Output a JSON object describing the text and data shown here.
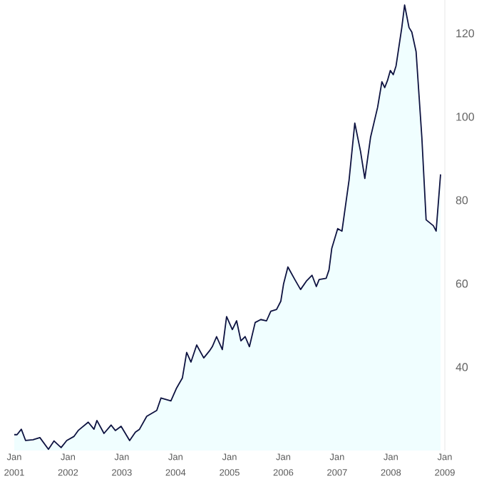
{
  "chart_data": {
    "type": "area",
    "color": "#0d1240",
    "x": [
      "2001-01-01",
      "2001-01-20",
      "2001-02-18",
      "2001-03-19",
      "2001-05-08",
      "2001-06-24",
      "2001-08-21",
      "2001-09-28",
      "2001-11-15",
      "2001-12-23",
      "2002-02-11",
      "2002-03-11",
      "2002-05-18",
      "2002-06-26",
      "2002-07-16",
      "2002-09-02",
      "2002-10-20",
      "2002-11-18",
      "2002-12-27",
      "2003-02-23",
      "2003-04-03",
      "2003-05-01",
      "2003-06-19",
      "2003-08-26",
      "2003-09-24",
      "2003-11-30",
      "2004-01-08",
      "2004-02-16",
      "2004-03-16",
      "2004-04-14",
      "2004-05-23",
      "2004-07-10",
      "2004-08-18",
      "2004-09-06",
      "2004-10-05",
      "2004-11-13",
      "2004-12-12",
      "2005-01-20",
      "2005-02-18",
      "2005-03-19",
      "2005-04-17",
      "2005-05-16",
      "2005-06-24",
      "2005-08-01",
      "2005-09-09",
      "2005-10-08",
      "2005-11-16",
      "2005-12-15",
      "2006-01-03",
      "2006-02-01",
      "2006-03-20",
      "2006-04-28",
      "2006-06-06",
      "2006-07-15",
      "2006-08-13",
      "2006-09-01",
      "2006-10-19",
      "2006-11-07",
      "2006-11-26",
      "2007-01-05",
      "2007-02-03",
      "2007-03-23",
      "2007-05-01",
      "2007-06-09",
      "2007-07-08",
      "2007-08-16",
      "2007-10-03",
      "2007-11-01",
      "2007-11-20",
      "2007-12-09",
      "2007-12-28",
      "2008-01-17",
      "2008-02-05",
      "2008-03-15",
      "2008-04-03",
      "2008-05-03",
      "2008-05-22",
      "2008-06-20",
      "2008-07-29",
      "2008-08-27",
      "2008-10-15",
      "2008-11-03",
      "2008-12-03"
    ],
    "values": [
      23.8,
      23.8,
      25.1,
      22.4,
      22.6,
      23.1,
      20.3,
      22.3,
      20.7,
      22.4,
      23.4,
      24.8,
      26.8,
      25.1,
      27.2,
      24.1,
      26.1,
      24.8,
      25.8,
      22.4,
      24.4,
      25.1,
      28.2,
      29.6,
      32.6,
      31.9,
      35.0,
      37.4,
      43.5,
      41.2,
      45.3,
      42.2,
      43.9,
      44.9,
      47.3,
      44.2,
      52.1,
      49.0,
      51.1,
      46.3,
      47.3,
      44.9,
      50.7,
      51.4,
      51.1,
      53.4,
      53.8,
      55.8,
      60.0,
      64.0,
      61.0,
      58.6,
      60.6,
      62.0,
      59.3,
      61.0,
      61.3,
      63.3,
      68.5,
      73.2,
      72.6,
      84.8,
      98.5,
      91.7,
      85.2,
      95.1,
      102.3,
      108.4,
      107.0,
      108.7,
      111.1,
      110.1,
      112.2,
      121.4,
      126.8,
      121.4,
      120.3,
      115.6,
      95.1,
      75.3,
      73.9,
      72.6,
      86.2
    ],
    "xlim": [
      "2001-01-01",
      "2009-01-01"
    ],
    "xticks": [
      {
        "value": "2001-01-01",
        "label": "Jan 2001"
      },
      {
        "value": "2002-01-01",
        "label": "Jan 2002"
      },
      {
        "value": "2003-01-01",
        "label": "Jan 2003"
      },
      {
        "value": "2004-01-01",
        "label": "Jan 2004"
      },
      {
        "value": "2005-01-01",
        "label": "Jan 2005"
      },
      {
        "value": "2006-01-01",
        "label": "Jan 2006"
      },
      {
        "value": "2007-01-01",
        "label": "Jan 2007"
      },
      {
        "value": "2008-01-01",
        "label": "Jan 2008"
      },
      {
        "value": "2009-01-01",
        "label": "Jan 2009"
      }
    ],
    "ylim": [
      20,
      128
    ],
    "yticks": [
      40,
      60,
      80,
      100,
      120
    ]
  }
}
